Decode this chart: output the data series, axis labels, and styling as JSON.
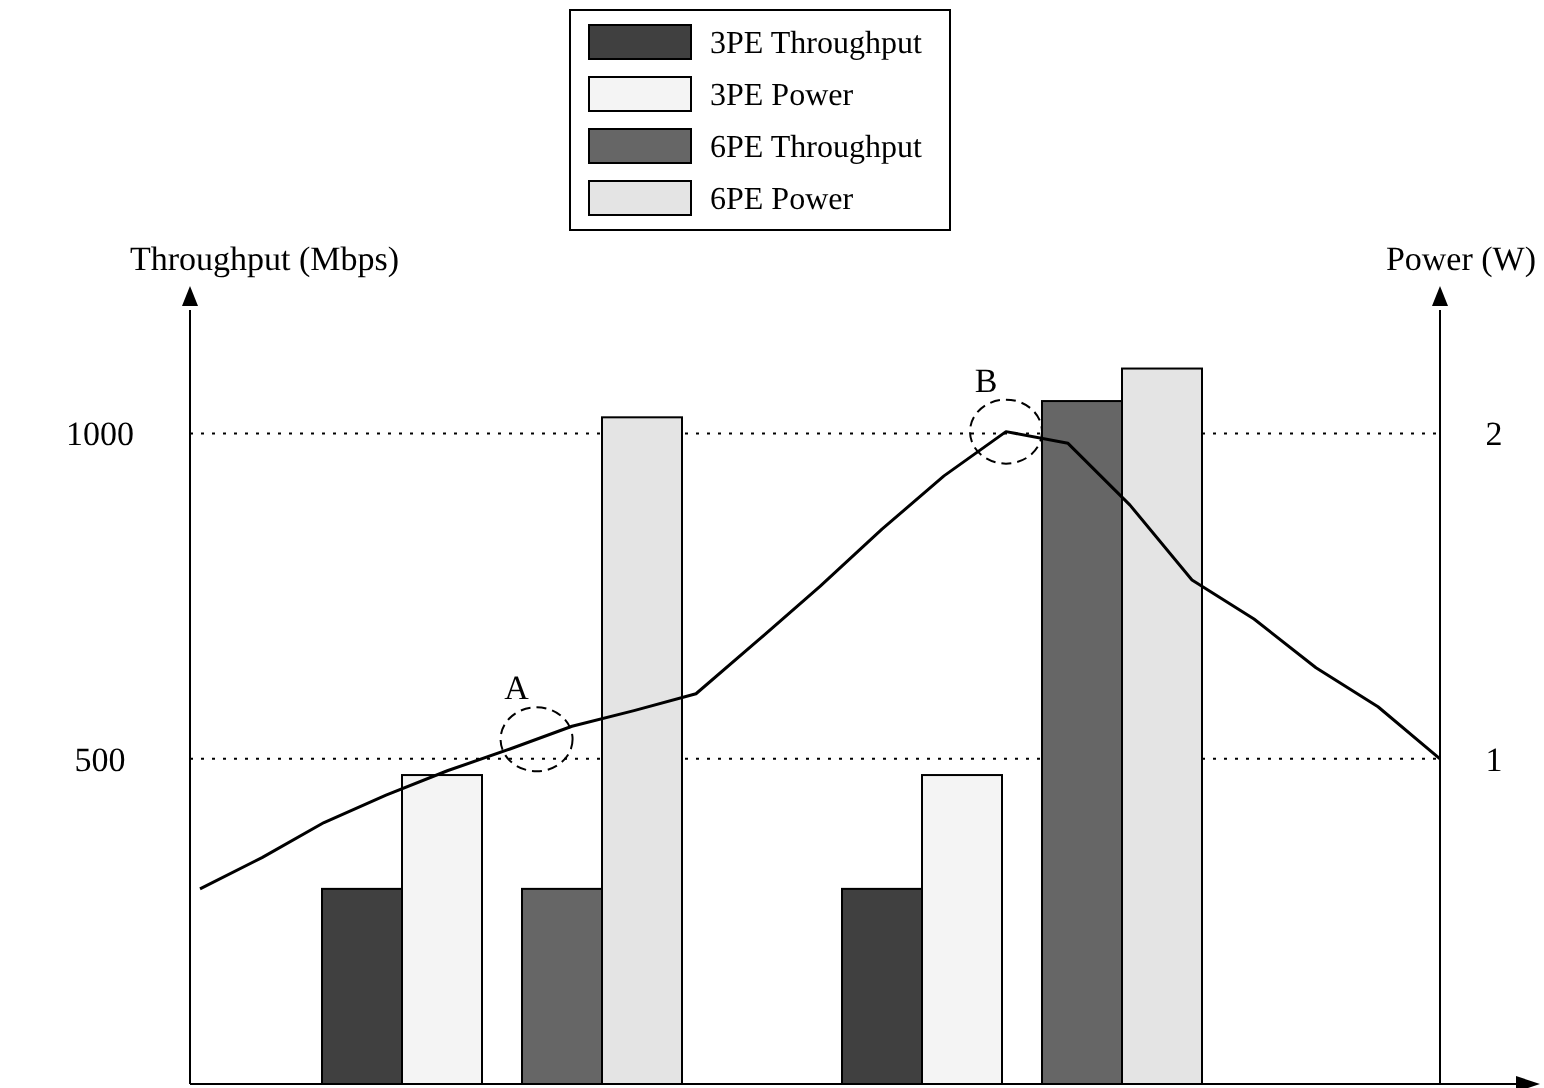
{
  "chart_data": [
    {
      "type": "bar",
      "ylabel": "Throughput (Mbps)",
      "y2label": "Power (W)",
      "categories": [
        null,
        null
      ],
      "ylim": [
        0,
        1190
      ],
      "yticks": [
        500,
        1000
      ],
      "y2lim": [
        0,
        2.38
      ],
      "y2ticks": [
        1,
        2
      ],
      "grid": "y",
      "legend": "top",
      "series": [
        {
          "name": "3PE Throughput",
          "color": "#404040",
          "values": [
            300,
            300
          ]
        },
        {
          "name": "3PE Power",
          "color": "#f4f4f4",
          "axis": "y2",
          "values": [
            0.95,
            0.95
          ]
        },
        {
          "name": "6PE Throughput",
          "color": "#666666",
          "values": [
            300,
            1050
          ]
        },
        {
          "name": "6PE Power",
          "color": "#e4e4e4",
          "axis": "y2",
          "values": [
            2.05,
            2.2
          ]
        }
      ]
    },
    {
      "type": "line",
      "categories": [
        null,
        null,
        null,
        null,
        null,
        null,
        null,
        null,
        null,
        null,
        null,
        null,
        null,
        null,
        null,
        null,
        null,
        null,
        null,
        null,
        null
      ],
      "ylim": [
        0,
        1190
      ],
      "series": [
        {
          "color": "#000000",
          "values": [
            300,
            348,
            402,
            444,
            482,
            515,
            550,
            574,
            600,
            682,
            765,
            853,
            935,
            1003,
            985,
            890,
            775,
            715,
            640,
            580,
            500
          ]
        }
      ],
      "annotations": [
        {
          "text": "A",
          "y": 530
        },
        {
          "text": "B"
        }
      ]
    }
  ]
}
